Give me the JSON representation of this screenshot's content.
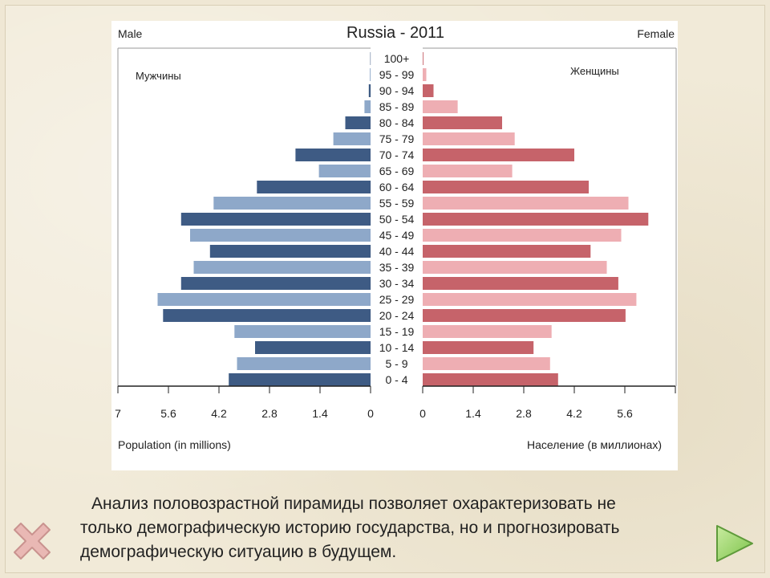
{
  "chart_data": {
    "type": "bar",
    "title": "Russia - 2011",
    "left_side_label": "Male",
    "right_side_label": "Female",
    "left_series_title": "Мужчины",
    "right_series_title": "Женщины",
    "left_xlabel": "Population (in millions)",
    "right_xlabel": "Население (в миллионах)",
    "left_ticks": [
      "7",
      "5.6",
      "4.2",
      "2.8",
      "1.4",
      "0"
    ],
    "right_ticks": [
      "0",
      "1.4",
      "2.8",
      "4.2",
      "5.6"
    ],
    "xlim": [
      0,
      7
    ],
    "categories": [
      "100+",
      "95 - 99",
      "90 - 94",
      "85 - 89",
      "80 - 84",
      "75 - 79",
      "70 - 74",
      "65 - 69",
      "60 - 64",
      "55 - 59",
      "50 - 54",
      "45 - 49",
      "40 - 44",
      "35 - 39",
      "30 - 34",
      "25 - 29",
      "20 - 24",
      "15 - 19",
      "10 - 14",
      "5 - 9",
      "0 - 4"
    ],
    "series": [
      {
        "name": "Мужчины",
        "values": [
          0.01,
          0.02,
          0.05,
          0.17,
          0.7,
          1.03,
          2.08,
          1.43,
          3.15,
          4.35,
          5.25,
          5.0,
          4.45,
          4.9,
          5.25,
          5.9,
          5.75,
          3.77,
          3.2,
          3.7,
          3.93
        ]
      },
      {
        "name": "Женщины",
        "values": [
          0.02,
          0.1,
          0.3,
          0.97,
          2.2,
          2.55,
          4.2,
          2.48,
          4.6,
          5.7,
          6.25,
          5.5,
          4.65,
          5.1,
          5.42,
          5.92,
          5.62,
          3.57,
          3.07,
          3.53,
          3.75
        ]
      }
    ],
    "colors": {
      "male_dark": "#3e5b84",
      "male_light": "#8ea8c9",
      "female_dark": "#c6636a",
      "female_light": "#eeaeb3"
    },
    "grid": false
  },
  "caption": {
    "line1": "Анализ половозрастной пирамиды позволяет охарактеризовать не",
    "line2": "только демографическую историю государства, но и прогнозировать",
    "line3": "демографическую ситуацию в будущем."
  },
  "icons": {
    "close": "close-x-icon",
    "next": "next-arrow-icon"
  }
}
